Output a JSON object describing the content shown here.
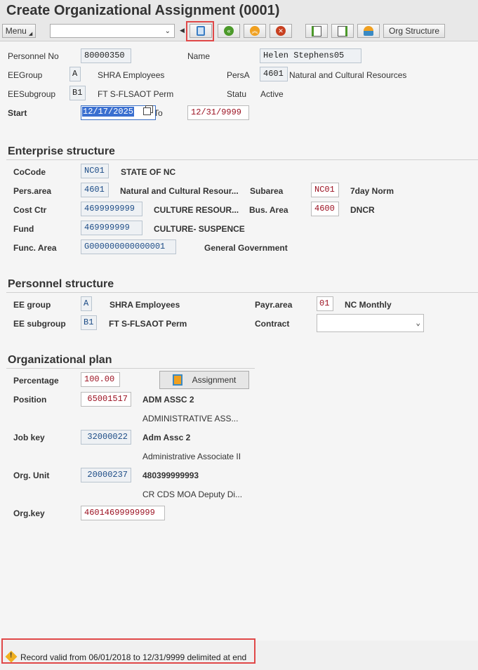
{
  "title": "Create Organizational Assignment (0001)",
  "toolbar": {
    "menu_label": "Menu",
    "command_value": "",
    "org_structure_label": "Org Structure",
    "icons": [
      "save-icon",
      "back-icon",
      "exit-icon",
      "cancel-icon",
      "previous-record-icon",
      "next-record-icon",
      "overview-icon"
    ]
  },
  "header": {
    "personnel_no_label": "Personnel No",
    "personnel_no": "80000350",
    "name_label": "Name",
    "name": "Helen Stephens05",
    "eegroup_label": "EEGroup",
    "eegroup": "A",
    "eegroup_text": "SHRA Employees",
    "persa_label": "PersA",
    "persa": "4601",
    "persa_text": "Natural and Cultural Resources",
    "eesubgroup_label": "EESubgroup",
    "eesubgroup": "B1",
    "eesubgroup_text": "FT S-FLSAOT Perm",
    "status_label": "Statu",
    "status": "Active",
    "start_label": "Start",
    "start": "12/17/2025",
    "to_label": "To",
    "end": "12/31/9999"
  },
  "enterprise": {
    "heading": "Enterprise structure",
    "cocode_label": "CoCode",
    "cocode": "NC01",
    "cocode_text": "STATE OF NC",
    "persarea_label": "Pers.area",
    "persarea": "4601",
    "persarea_text": "Natural and Cultural Resour...",
    "subarea_label": "Subarea",
    "subarea": "NC01",
    "subarea_text": "7day Norm",
    "costctr_label": "Cost Ctr",
    "costctr": "4699999999",
    "costctr_text": "CULTURE RESOUR...",
    "busarea_label": "Bus. Area",
    "busarea": "4600",
    "busarea_text": "DNCR",
    "fund_label": "Fund",
    "fund": "469999999",
    "fund_text": "CULTURE- SUSPENCE",
    "funcarea_label": "Func. Area",
    "funcarea": "G000000000000001",
    "funcarea_text": "General Government"
  },
  "personnel": {
    "heading": "Personnel structure",
    "eegroup_label": "EE group",
    "eegroup": "A",
    "eegroup_text": "SHRA Employees",
    "payrarea_label": "Payr.area",
    "payrarea": "01",
    "payrarea_text": "NC Monthly",
    "eesubgroup_label": "EE subgroup",
    "eesubgroup": "B1",
    "eesubgroup_text": "FT S-FLSAOT Perm",
    "contract_label": "Contract",
    "contract": ""
  },
  "orgplan": {
    "heading": "Organizational plan",
    "percentage_label": "Percentage",
    "percentage": "100.00",
    "assignment_label": "Assignment",
    "position_label": "Position",
    "position": "65001517",
    "position_short": "ADM ASSC 2",
    "position_long": "ADMINISTRATIVE ASS...",
    "jobkey_label": "Job key",
    "jobkey": "32000022",
    "jobkey_short": "Adm Assc 2",
    "jobkey_long": "Administrative Associate II",
    "orgunit_label": "Org. Unit",
    "orgunit": "20000237",
    "orgunit_short": "480399999993",
    "orgunit_long": "CR CDS MOA Deputy Di...",
    "orgkey_label": "Org.key",
    "orgkey": "46014699999999"
  },
  "status_bar": {
    "message": "Record valid from 06/01/2018 to 12/31/9999 delimited at end",
    "icon": "warning-icon"
  },
  "colors": {
    "highlight": "#e04848",
    "editable_text": "#9b1020",
    "readonly_text": "#1b4b86"
  }
}
